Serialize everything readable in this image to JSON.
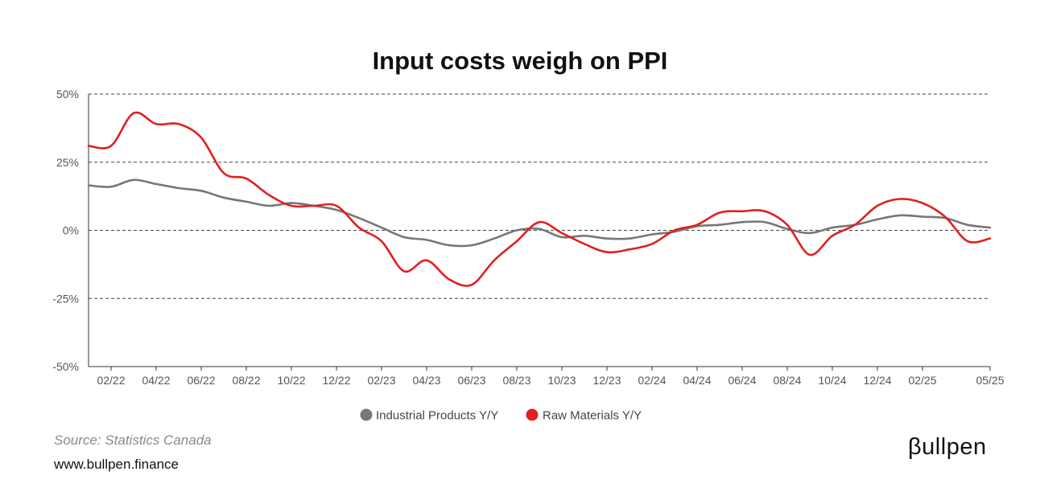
{
  "chart_data": {
    "type": "line",
    "title": "Input costs weigh on PPI",
    "xlabel": "",
    "ylabel": "",
    "ylim": [
      -50,
      50
    ],
    "yticks": [
      50,
      25,
      0,
      -25,
      -50
    ],
    "ytick_labels": [
      "50%",
      "25%",
      "0%",
      "-25%",
      "-50%"
    ],
    "x": [
      "01/22",
      "02/22",
      "03/22",
      "04/22",
      "05/22",
      "06/22",
      "07/22",
      "08/22",
      "09/22",
      "10/22",
      "11/22",
      "12/22",
      "01/23",
      "02/23",
      "03/23",
      "04/23",
      "05/23",
      "06/23",
      "07/23",
      "08/23",
      "09/23",
      "10/23",
      "11/23",
      "12/23",
      "01/24",
      "02/24",
      "03/24",
      "04/24",
      "05/24",
      "06/24",
      "07/24",
      "08/24",
      "09/24",
      "10/24",
      "11/24",
      "12/24",
      "01/25",
      "02/25",
      "03/25",
      "04/25",
      "05/25"
    ],
    "xtick_labels": [
      "02/22",
      "04/22",
      "06/22",
      "08/22",
      "10/22",
      "12/22",
      "02/23",
      "04/23",
      "06/23",
      "08/23",
      "10/23",
      "12/23",
      "02/24",
      "04/24",
      "06/24",
      "08/24",
      "10/24",
      "12/24",
      "02/25",
      "05/25"
    ],
    "grid": "horizontal dashed",
    "legend_position": "bottom",
    "series": [
      {
        "name": "Industrial Products Y/Y",
        "color": "#777777",
        "values": [
          16.5,
          16,
          18.5,
          17,
          15.5,
          14.5,
          12,
          10.5,
          9,
          10,
          9,
          7.5,
          4.5,
          1,
          -2.5,
          -3.5,
          -5.5,
          -5.5,
          -3,
          0,
          0.5,
          -2.5,
          -2,
          -3,
          -3,
          -1.5,
          -0.5,
          1.5,
          2,
          3,
          3,
          0.5,
          -1,
          1,
          2,
          4,
          5.5,
          5,
          4.5,
          2,
          1
        ]
      },
      {
        "name": "Raw Materials Y/Y",
        "color": "#e02020",
        "values": [
          31,
          31,
          43,
          39,
          39,
          34,
          21,
          19,
          13,
          9,
          9,
          9,
          1,
          -4,
          -15,
          -11,
          -18,
          -20,
          -11,
          -4,
          3,
          -1,
          -5,
          -8,
          -7,
          -5,
          0,
          2,
          6.5,
          7,
          7,
          2,
          -9,
          -2,
          2,
          9,
          11.5,
          10,
          5,
          -4,
          -3
        ]
      }
    ]
  },
  "footer": {
    "source": "Source: Statistics Canada",
    "website": "www.bullpen.finance",
    "brand": "βullpen"
  }
}
